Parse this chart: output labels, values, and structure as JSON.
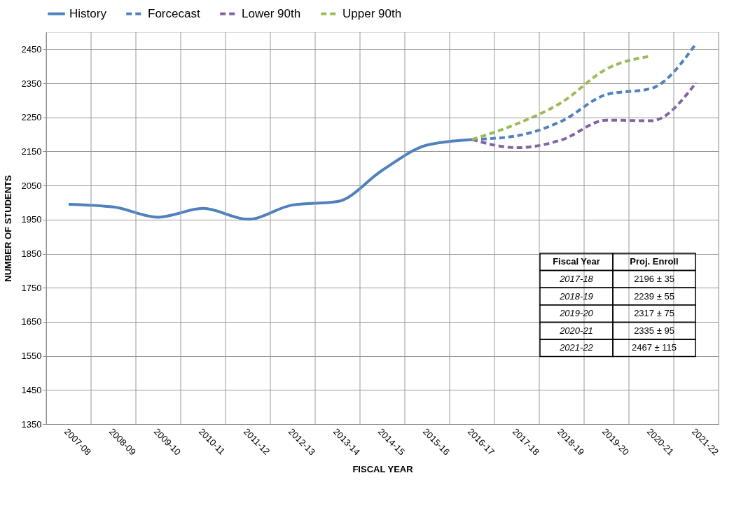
{
  "chart_data": {
    "type": "line",
    "xlabel": "FISCAL YEAR",
    "ylabel": "NUMBER OF STUDENTS",
    "categories": [
      "2007-08",
      "2008-09",
      "2009-10",
      "2010-11",
      "2011-12",
      "2012-13",
      "2013-14",
      "2014-15",
      "2015-16",
      "2016-17",
      "2017-18",
      "2018-19",
      "2019-20",
      "2020-21",
      "2021-22"
    ],
    "series": [
      {
        "name": "History",
        "color": "#4f81bd",
        "line_style": "solid",
        "values": [
          1995,
          1987,
          1957,
          1983,
          1951,
          1993,
          2003,
          2095,
          2169,
          2185,
          null,
          null,
          null,
          null,
          null
        ]
      },
      {
        "name": "Forcecast",
        "color": "#4f81bd",
        "line_style": "dashed",
        "values": [
          null,
          null,
          null,
          null,
          null,
          null,
          null,
          null,
          null,
          2185,
          2196,
          2239,
          2317,
          2335,
          2467
        ]
      },
      {
        "name": "Lower 90th",
        "color": "#8064a2",
        "line_style": "dashed",
        "values": [
          null,
          null,
          null,
          null,
          null,
          null,
          null,
          null,
          null,
          2185,
          2161,
          2184,
          2242,
          2240,
          2352
        ]
      },
      {
        "name": "Upper 90th",
        "color": "#9bbb59",
        "line_style": "dashed",
        "values": [
          null,
          null,
          null,
          null,
          null,
          null,
          null,
          null,
          null,
          2185,
          2231,
          2294,
          2392,
          2430,
          null
        ]
      }
    ],
    "ylim": [
      1350,
      2500
    ],
    "yticks": [
      1350,
      1450,
      1550,
      1650,
      1750,
      1850,
      1950,
      2050,
      2150,
      2250,
      2350,
      2450
    ],
    "grid": true,
    "legend": "top",
    "marker": "none",
    "annotations": [
      "Fiscal Year",
      "Proj. Enroll",
      "2017-18",
      "2196 ± 35",
      "2018-19",
      "2239 ± 55",
      "2019-20",
      "2317 ± 75",
      "2020-21",
      "2335 ± 95",
      "2021-22",
      "2467  ± 115"
    ]
  }
}
